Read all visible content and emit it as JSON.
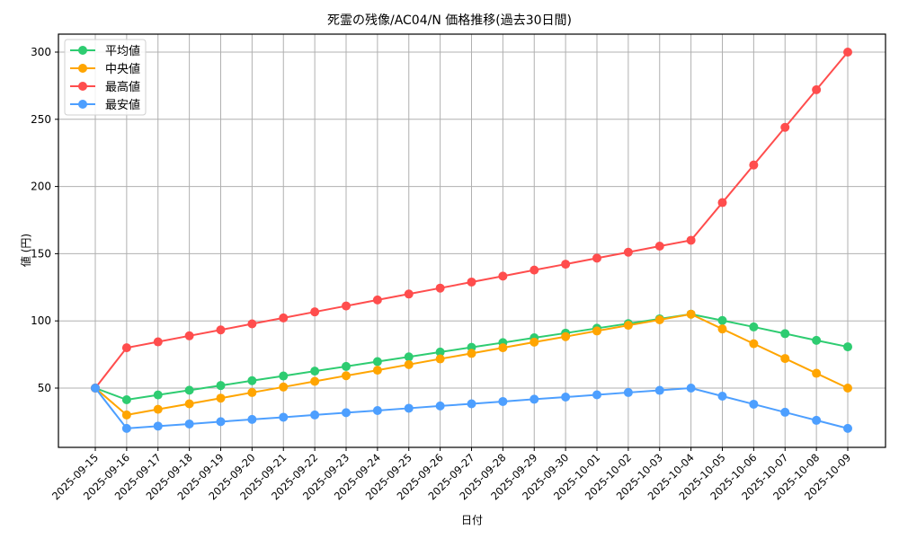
{
  "chart_data": {
    "type": "line",
    "title": "死霊の残像/AC04/N 価格推移(過去30日間)",
    "xlabel": "日付",
    "ylabel": "値 (円)",
    "ylim": [
      11,
      313
    ],
    "yticks": [
      50,
      100,
      150,
      200,
      250,
      300
    ],
    "grid": true,
    "legend_position": "upper left",
    "categories": [
      "2025-09-15",
      "2025-09-16",
      "2025-09-17",
      "2025-09-18",
      "2025-09-19",
      "2025-09-20",
      "2025-09-21",
      "2025-09-22",
      "2025-09-23",
      "2025-09-24",
      "2025-09-25",
      "2025-09-26",
      "2025-09-27",
      "2025-09-28",
      "2025-09-29",
      "2025-09-30",
      "2025-10-01",
      "2025-10-02",
      "2025-10-03",
      "2025-10-04",
      "2025-10-05",
      "2025-10-06",
      "2025-10-07",
      "2025-10-08",
      "2025-10-09"
    ],
    "series": [
      {
        "name": "平均値",
        "color": "#2ecc71",
        "values": [
          50,
          41.3,
          44.9,
          48.4,
          51.9,
          55.5,
          59.0,
          62.6,
          66.1,
          69.7,
          73.2,
          76.8,
          80.3,
          83.8,
          87.4,
          90.9,
          94.5,
          98.0,
          101.5,
          105,
          100.3,
          95.5,
          90.5,
          85.5,
          80.7
        ]
      },
      {
        "name": "中央値",
        "color": "#ffa500",
        "values": [
          50,
          30,
          34.2,
          38.3,
          42.5,
          46.7,
          50.8,
          55.0,
          59.2,
          63.3,
          67.5,
          71.7,
          75.8,
          80.0,
          84.2,
          88.3,
          92.5,
          96.7,
          100.8,
          105,
          94,
          83,
          72,
          61,
          50
        ]
      },
      {
        "name": "最高値",
        "color": "#ff4d4d",
        "values": [
          50,
          80,
          84.4,
          88.9,
          93.3,
          97.8,
          102.2,
          106.7,
          111.1,
          115.6,
          120,
          124.4,
          128.9,
          133.3,
          137.8,
          142.2,
          146.7,
          151.1,
          155.6,
          160,
          188,
          216,
          244,
          272,
          300
        ]
      },
      {
        "name": "最安値",
        "color": "#4d9fff",
        "values": [
          50,
          20,
          21.7,
          23.3,
          25.0,
          26.7,
          28.3,
          30.0,
          31.7,
          33.3,
          35.0,
          36.7,
          38.3,
          40.0,
          41.7,
          43.3,
          45.0,
          46.7,
          48.3,
          50,
          44,
          38,
          32,
          26,
          20
        ]
      }
    ]
  }
}
